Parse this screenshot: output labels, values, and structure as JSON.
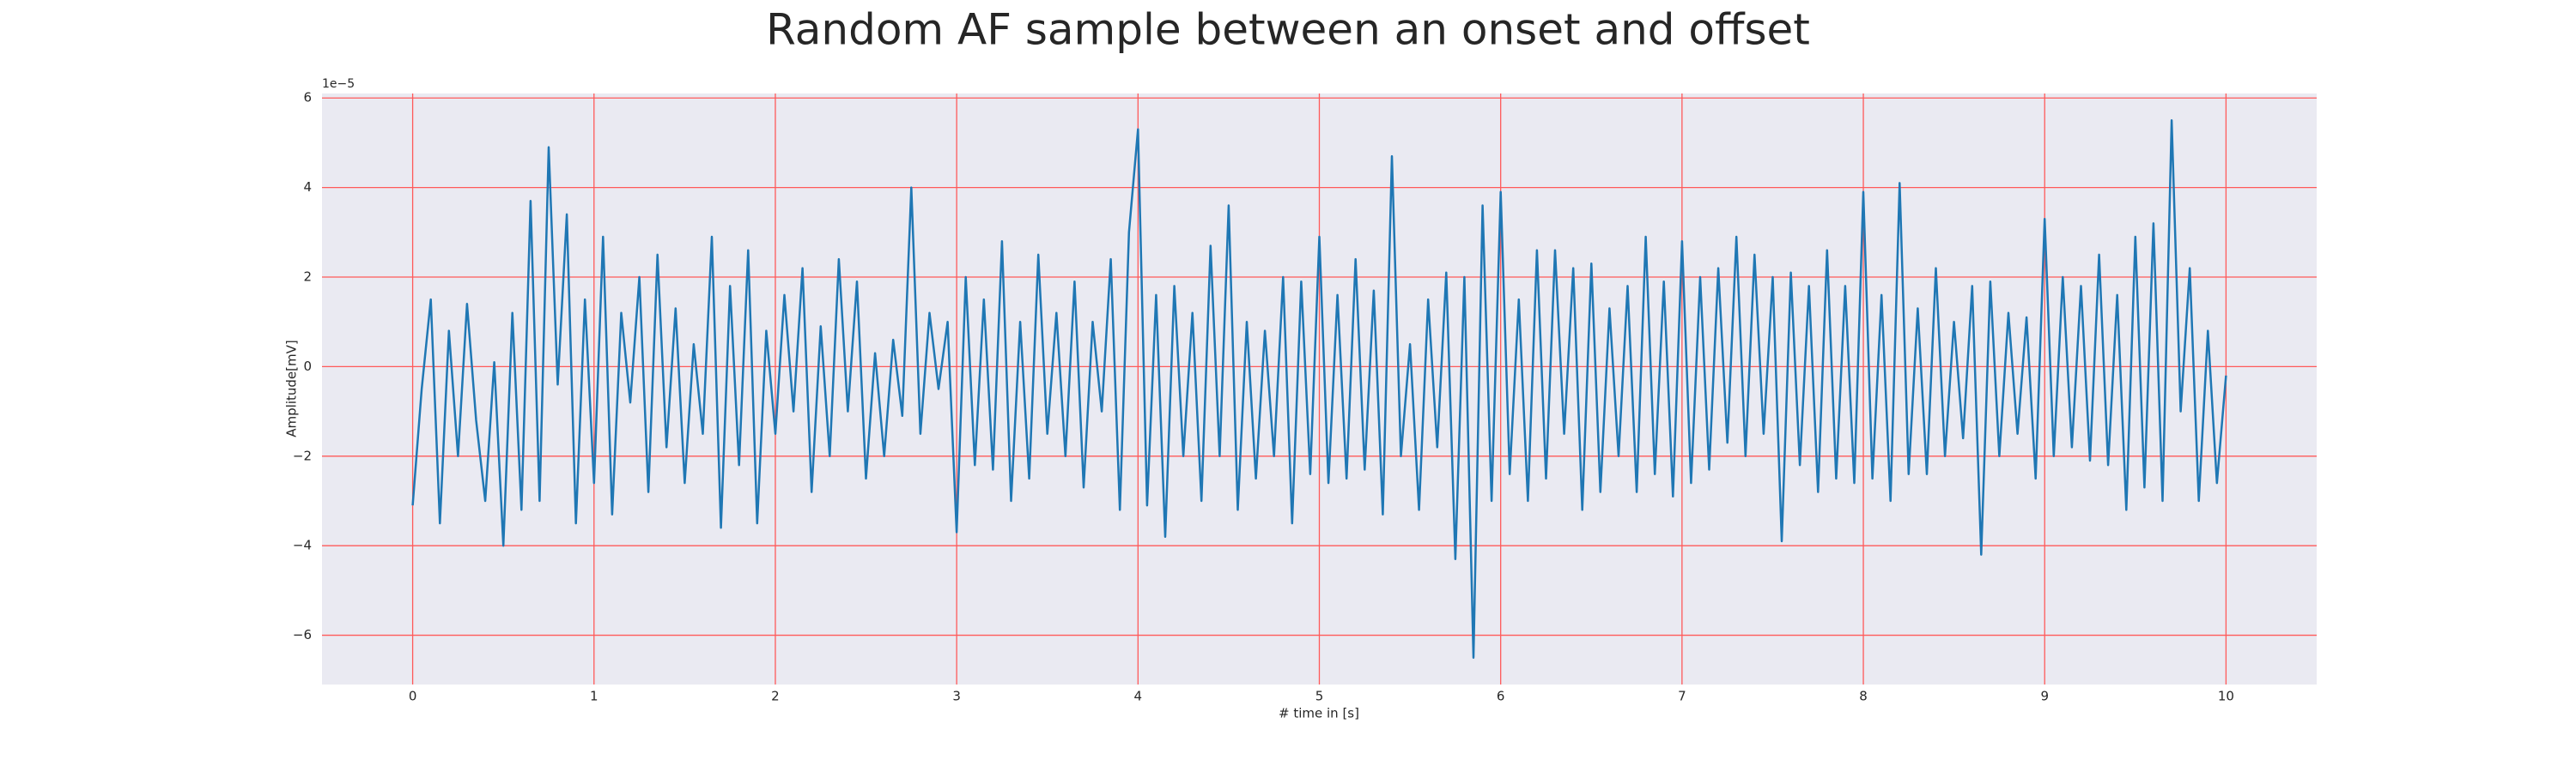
{
  "chart_data": {
    "type": "line",
    "title": "Random AF sample between an onset and offset",
    "xlabel": "# time in [s]",
    "ylabel": "Amplitude[mV]",
    "offset_text": "1e−5",
    "color": "#1f77b4",
    "grid": true,
    "grid_color": "#ff5a5a",
    "xlim": [
      -0.5,
      10.5
    ],
    "ylim": [
      -7.1,
      6.1
    ],
    "xticks": [
      0,
      1,
      2,
      3,
      4,
      5,
      6,
      7,
      8,
      9,
      10
    ],
    "yticks": [
      {
        "value": -6,
        "label": "−6"
      },
      {
        "value": -4,
        "label": "−4"
      },
      {
        "value": -2,
        "label": "−2"
      },
      0,
      2,
      4,
      6
    ],
    "x": [
      0,
      0.05,
      0.1,
      0.15,
      0.2,
      0.25,
      0.3,
      0.35,
      0.4,
      0.45,
      0.5,
      0.55,
      0.6,
      0.65,
      0.7,
      0.75,
      0.8,
      0.85,
      0.9,
      0.95,
      1,
      1.05,
      1.1,
      1.15,
      1.2,
      1.25,
      1.3,
      1.35,
      1.4,
      1.45,
      1.5,
      1.55,
      1.6,
      1.65,
      1.7,
      1.75,
      1.8,
      1.85,
      1.9,
      1.95,
      2,
      2.05,
      2.1,
      2.15,
      2.2,
      2.25,
      2.3,
      2.35,
      2.4,
      2.45,
      2.5,
      2.55,
      2.6,
      2.65,
      2.7,
      2.75,
      2.8,
      2.85,
      2.9,
      2.95,
      3,
      3.05,
      3.1,
      3.15,
      3.2,
      3.25,
      3.3,
      3.35,
      3.4,
      3.45,
      3.5,
      3.55,
      3.6,
      3.65,
      3.7,
      3.75,
      3.8,
      3.85,
      3.9,
      3.95,
      4,
      4.05,
      4.1,
      4.15,
      4.2,
      4.25,
      4.3,
      4.35,
      4.4,
      4.45,
      4.5,
      4.55,
      4.6,
      4.65,
      4.7,
      4.75,
      4.8,
      4.85,
      4.9,
      4.95,
      5,
      5.05,
      5.1,
      5.15,
      5.2,
      5.25,
      5.3,
      5.35,
      5.4,
      5.45,
      5.5,
      5.55,
      5.6,
      5.65,
      5.7,
      5.75,
      5.8,
      5.85,
      5.9,
      5.95,
      6,
      6.05,
      6.1,
      6.15,
      6.2,
      6.25,
      6.3,
      6.35,
      6.4,
      6.45,
      6.5,
      6.55,
      6.6,
      6.65,
      6.7,
      6.75,
      6.8,
      6.85,
      6.9,
      6.95,
      7,
      7.05,
      7.1,
      7.15,
      7.2,
      7.25,
      7.3,
      7.35,
      7.4,
      7.45,
      7.5,
      7.55,
      7.6,
      7.65,
      7.7,
      7.75,
      7.8,
      7.85,
      7.9,
      7.95,
      8,
      8.05,
      8.1,
      8.15,
      8.2,
      8.25,
      8.3,
      8.35,
      8.4,
      8.45,
      8.5,
      8.55,
      8.6,
      8.65,
      8.7,
      8.75,
      8.8,
      8.85,
      8.9,
      8.95,
      9,
      9.05,
      9.1,
      9.15,
      9.2,
      9.25,
      9.3,
      9.35,
      9.4,
      9.45,
      9.5,
      9.55,
      9.6,
      9.65,
      9.7,
      9.75,
      9.8,
      9.85,
      9.9,
      9.95,
      10
    ],
    "values": [
      -3.1,
      -0.5,
      1.5,
      -3.5,
      0.8,
      -2.0,
      1.4,
      -1.2,
      -3.0,
      0.1,
      -4.0,
      1.2,
      -3.2,
      3.7,
      -3.0,
      4.9,
      -0.4,
      3.4,
      -3.5,
      1.5,
      -2.6,
      2.9,
      -3.3,
      1.2,
      -0.8,
      2.0,
      -2.8,
      2.5,
      -1.8,
      1.3,
      -2.6,
      0.5,
      -1.5,
      2.9,
      -3.6,
      1.8,
      -2.2,
      2.6,
      -3.5,
      0.8,
      -1.5,
      1.6,
      -1.0,
      2.2,
      -2.8,
      0.9,
      -2.0,
      2.4,
      -1.0,
      1.9,
      -2.5,
      0.3,
      -2.0,
      0.6,
      -1.1,
      4.0,
      -1.5,
      1.2,
      -0.5,
      1.0,
      -3.7,
      2.0,
      -2.2,
      1.5,
      -2.3,
      2.8,
      -3.0,
      1.0,
      -2.5,
      2.5,
      -1.5,
      1.2,
      -2.0,
      1.9,
      -2.7,
      1.0,
      -1.0,
      2.4,
      -3.2,
      3.0,
      5.3,
      -3.1,
      1.6,
      -3.8,
      1.8,
      -2.0,
      1.2,
      -3.0,
      2.7,
      -2.0,
      3.6,
      -3.2,
      1.0,
      -2.5,
      0.8,
      -2.0,
      2.0,
      -3.5,
      1.9,
      -2.4,
      2.9,
      -2.6,
      1.6,
      -2.5,
      2.4,
      -2.3,
      1.7,
      -3.3,
      4.7,
      -2.0,
      0.5,
      -3.2,
      1.5,
      -1.8,
      2.1,
      -4.3,
      2.0,
      -6.5,
      3.6,
      -3.0,
      3.9,
      -2.4,
      1.5,
      -3.0,
      2.6,
      -2.5,
      2.6,
      -1.5,
      2.2,
      -3.2,
      2.3,
      -2.8,
      1.3,
      -2.0,
      1.8,
      -2.8,
      2.9,
      -2.4,
      1.9,
      -2.9,
      2.8,
      -2.6,
      2.0,
      -2.3,
      2.2,
      -1.7,
      2.9,
      -2.0,
      2.5,
      -1.5,
      2.0,
      -3.9,
      2.1,
      -2.2,
      1.8,
      -2.8,
      2.6,
      -2.5,
      1.8,
      -2.6,
      3.9,
      -2.5,
      1.6,
      -3.0,
      4.1,
      -2.4,
      1.3,
      -2.4,
      2.2,
      -2.0,
      1.0,
      -1.6,
      1.8,
      -4.2,
      1.9,
      -2.0,
      1.2,
      -1.5,
      1.1,
      -2.5,
      3.3,
      -2.0,
      2.0,
      -1.8,
      1.8,
      -2.1,
      2.5,
      -2.2,
      1.6,
      -3.2,
      2.9,
      -2.7,
      3.2,
      -3.0,
      5.5,
      -1.0,
      2.2,
      -3.0,
      0.8,
      -2.6,
      -0.2
    ]
  }
}
